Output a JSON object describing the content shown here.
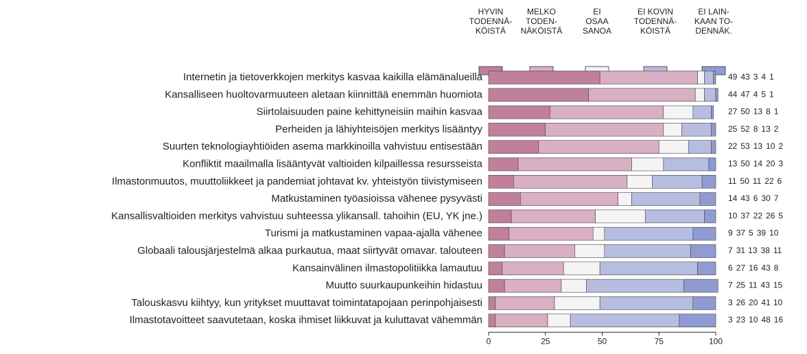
{
  "chart_data": {
    "type": "stacked-bar-horizontal",
    "categories": [
      "Internetin ja tietoverkkojen merkitys kasvaa kaikilla elämänalueilla",
      "Kansalliseen huoltovarmuuteen aletaan kiinnittää enemmän huomiota",
      "Siirtolaisuuden paine kehittyneisiin maihin kasvaa",
      "Perheiden ja lähiyhteisöjen merkitys lisääntyy",
      "Suurten teknologiayhtiöiden asema markkinoilla vahvistuu entisestään",
      "Konfliktit maailmalla lisääntyvät valtioiden kilpaillessa resursseista",
      "Ilmastonmuutos, muuttoliikkeet ja pandemiat johtavat kv. yhteistyön tiivistymiseen",
      "Matkustaminen työasioissa vähenee pysyvästi",
      "Kansallisvaltioiden merkitys vahvistuu suhteessa ylikansall. tahoihin (EU, YK jne.)",
      "Turismi ja matkustaminen vapaa-ajalla vähenee",
      "Globaali talousjärjestelmä alkaa purkautua, maat siirtyvät omavar. talouteen",
      "Kansainvälinen ilmastopolitiikka lamautuu",
      "Muutto suurkaupunkeihin hidastuu",
      "Talouskasvu kiihtyy, kun yritykset muuttavat toimintatapojaan perinpohjaisesti",
      "Ilmastotavoitteet saavutetaan, koska ihmiset liikkuvat ja kuluttavat vähemmän"
    ],
    "series": [
      {
        "name": [
          "HYVIN",
          "TODENNÄ-",
          "KÖISTÄ"
        ],
        "color": "#c0809c",
        "values": [
          49,
          44,
          27,
          25,
          22,
          13,
          11,
          14,
          10,
          9,
          7,
          6,
          7,
          3,
          3
        ]
      },
      {
        "name": [
          "MELKO",
          "TODEN-",
          "NÄKÖISTÄ"
        ],
        "color": "#d9afc3",
        "values": [
          43,
          47,
          50,
          52,
          53,
          50,
          50,
          43,
          37,
          37,
          31,
          27,
          25,
          26,
          23
        ]
      },
      {
        "name": [
          "EI",
          "OSAA",
          "SANOA"
        ],
        "color": "#f4f4f4",
        "values": [
          3,
          4,
          13,
          8,
          13,
          14,
          11,
          6,
          22,
          5,
          13,
          16,
          11,
          20,
          10
        ]
      },
      {
        "name": [
          "EI KOVIN",
          "TODENNÄ-",
          "KÖISTÄ"
        ],
        "color": "#b6bde0",
        "values": [
          4,
          5,
          8,
          13,
          10,
          20,
          22,
          30,
          26,
          39,
          38,
          43,
          43,
          41,
          48
        ]
      },
      {
        "name": [
          "EI LAIN-",
          "KAAN TO-",
          "DENNÄK."
        ],
        "color": "#8f9bd1",
        "values": [
          1,
          1,
          1,
          2,
          2,
          3,
          6,
          7,
          5,
          10,
          11,
          8,
          15,
          10,
          16
        ]
      }
    ],
    "xlim": [
      0,
      100
    ],
    "xticks": [
      0,
      25,
      50,
      75,
      100
    ]
  }
}
